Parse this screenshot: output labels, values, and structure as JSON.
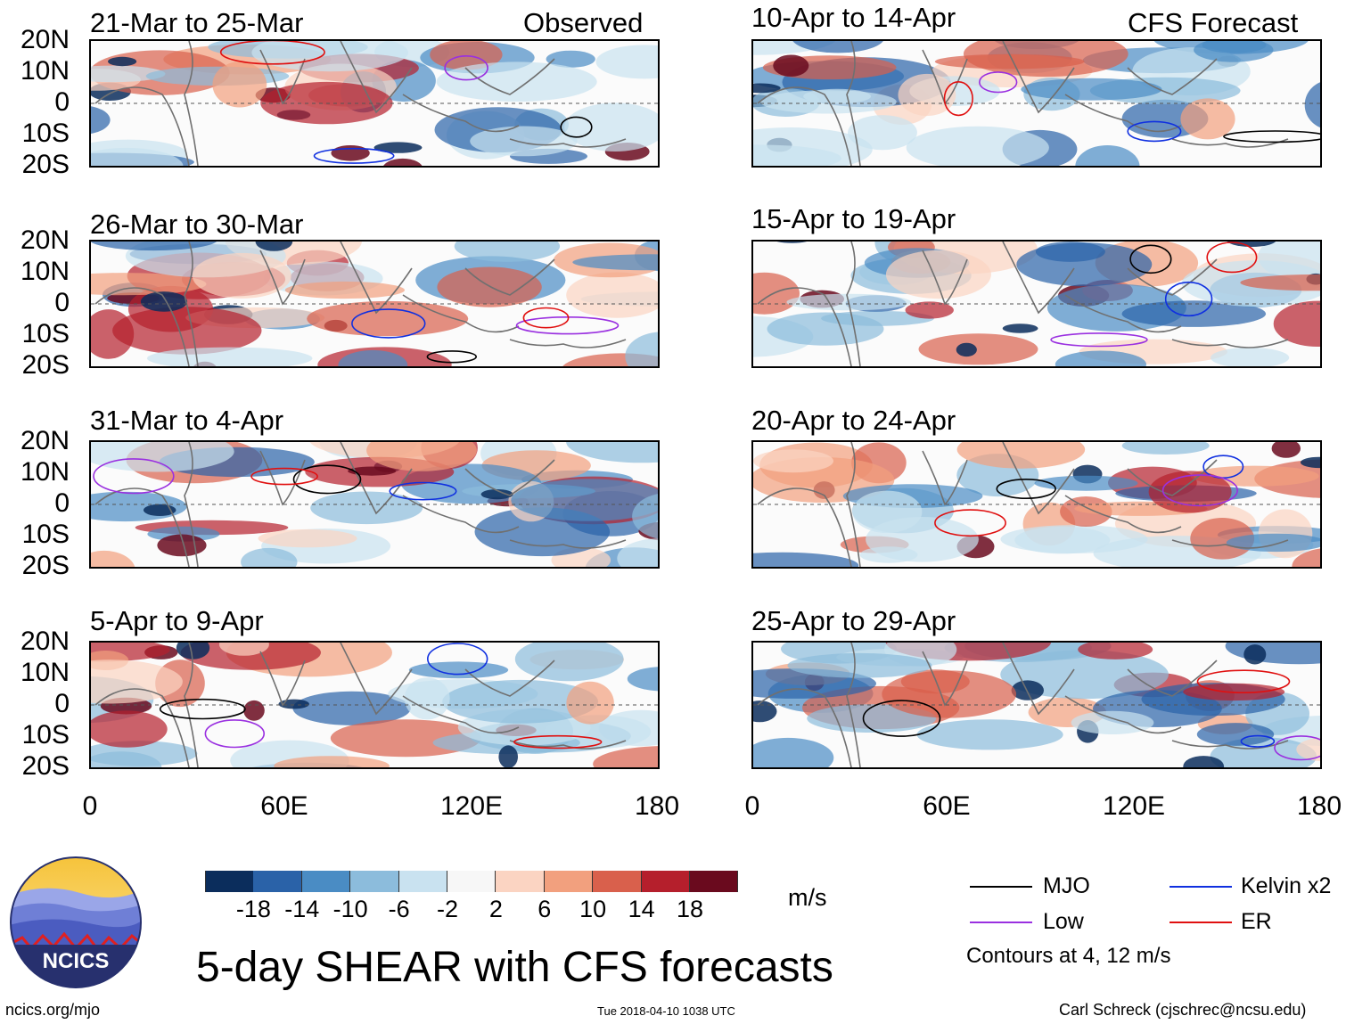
{
  "figure_title": "5-day SHEAR with CFS forecasts",
  "left_column_header": "Observed",
  "right_column_header": "CFS Forecast",
  "left_panels": [
    {
      "title": "21-Mar to 25-Mar"
    },
    {
      "title": "26-Mar to 30-Mar"
    },
    {
      "title": "31-Mar to 4-Apr"
    },
    {
      "title": "5-Apr to 9-Apr"
    }
  ],
  "right_panels": [
    {
      "title": "10-Apr to 14-Apr"
    },
    {
      "title": "15-Apr to 19-Apr"
    },
    {
      "title": "20-Apr to 24-Apr"
    },
    {
      "title": "25-Apr to 29-Apr"
    }
  ],
  "lat_labels": [
    "20N",
    "10N",
    "0",
    "10S",
    "20S"
  ],
  "lon_labels": [
    "0",
    "60E",
    "120E",
    "180"
  ],
  "colorbar": {
    "unit": "m/s",
    "labels": [
      "-18",
      "-14",
      "-10",
      "-6",
      "-2",
      "2",
      "6",
      "10",
      "14",
      "18"
    ],
    "colors": [
      "#0b2d5c",
      "#2a62a8",
      "#4a8cc4",
      "#8cbcdc",
      "#c9e2f0",
      "#f7f7f7",
      "#fbd4c2",
      "#f2a07e",
      "#d9604c",
      "#b51f2c",
      "#6a0a1e"
    ]
  },
  "legend": {
    "items": [
      {
        "label": "MJO",
        "color": "#000000"
      },
      {
        "label": "Kelvin x2",
        "color": "#1030e0"
      },
      {
        "label": "Low",
        "color": "#9a30e0"
      },
      {
        "label": "ER",
        "color": "#e01010"
      }
    ],
    "note": "Contours at 4, 12 m/s"
  },
  "logo": {
    "text": "NCICS"
  },
  "footer": {
    "url": "ncics.org/mjo",
    "timestamp": "Tue 2018-04-10 1038 UTC",
    "credit": "Carl Schreck (cjschrec@ncsu.edu)"
  }
}
